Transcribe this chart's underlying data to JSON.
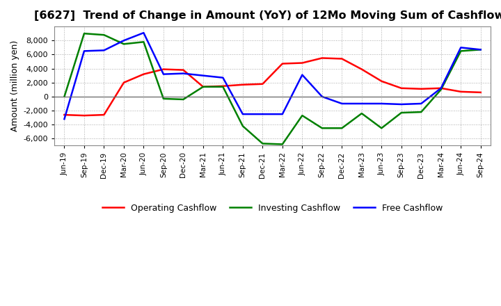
{
  "title": "[6627]  Trend of Change in Amount (YoY) of 12Mo Moving Sum of Cashflows",
  "ylabel": "Amount (million yen)",
  "x_labels": [
    "Jun-19",
    "Sep-19",
    "Dec-19",
    "Mar-20",
    "Jun-20",
    "Sep-20",
    "Dec-20",
    "Mar-21",
    "Jun-21",
    "Sep-21",
    "Dec-21",
    "Mar-22",
    "Jun-22",
    "Sep-22",
    "Dec-22",
    "Mar-23",
    "Jun-23",
    "Sep-23",
    "Dec-23",
    "Mar-24",
    "Jun-24",
    "Sep-24"
  ],
  "operating": [
    -2600,
    -2700,
    -2600,
    2000,
    3200,
    3900,
    3800,
    1400,
    1500,
    1700,
    1800,
    4700,
    4800,
    5500,
    5400,
    3900,
    2200,
    1200,
    1100,
    1200,
    700,
    600
  ],
  "investing": [
    0,
    9000,
    8800,
    7500,
    7800,
    -300,
    -400,
    1400,
    1400,
    -4200,
    -6700,
    -6800,
    -2700,
    -4500,
    -4500,
    -2400,
    -4500,
    -2300,
    -2200,
    1000,
    6500,
    6700
  ],
  "free": [
    -3200,
    6500,
    6600,
    8000,
    9100,
    3200,
    3300,
    3000,
    2700,
    -2500,
    -2500,
    -2500,
    3100,
    0,
    -1000,
    -1000,
    -1000,
    -1100,
    -1000,
    1200,
    7000,
    6700
  ],
  "operating_color": "#ff0000",
  "investing_color": "#008000",
  "free_color": "#0000ff",
  "background_color": "#ffffff",
  "grid_color": "#aaaaaa",
  "ylim": [
    -7000,
    10000
  ],
  "yticks": [
    -6000,
    -4000,
    -2000,
    0,
    2000,
    4000,
    6000,
    8000
  ],
  "title_fontsize": 11.5,
  "legend_labels": [
    "Operating Cashflow",
    "Investing Cashflow",
    "Free Cashflow"
  ]
}
